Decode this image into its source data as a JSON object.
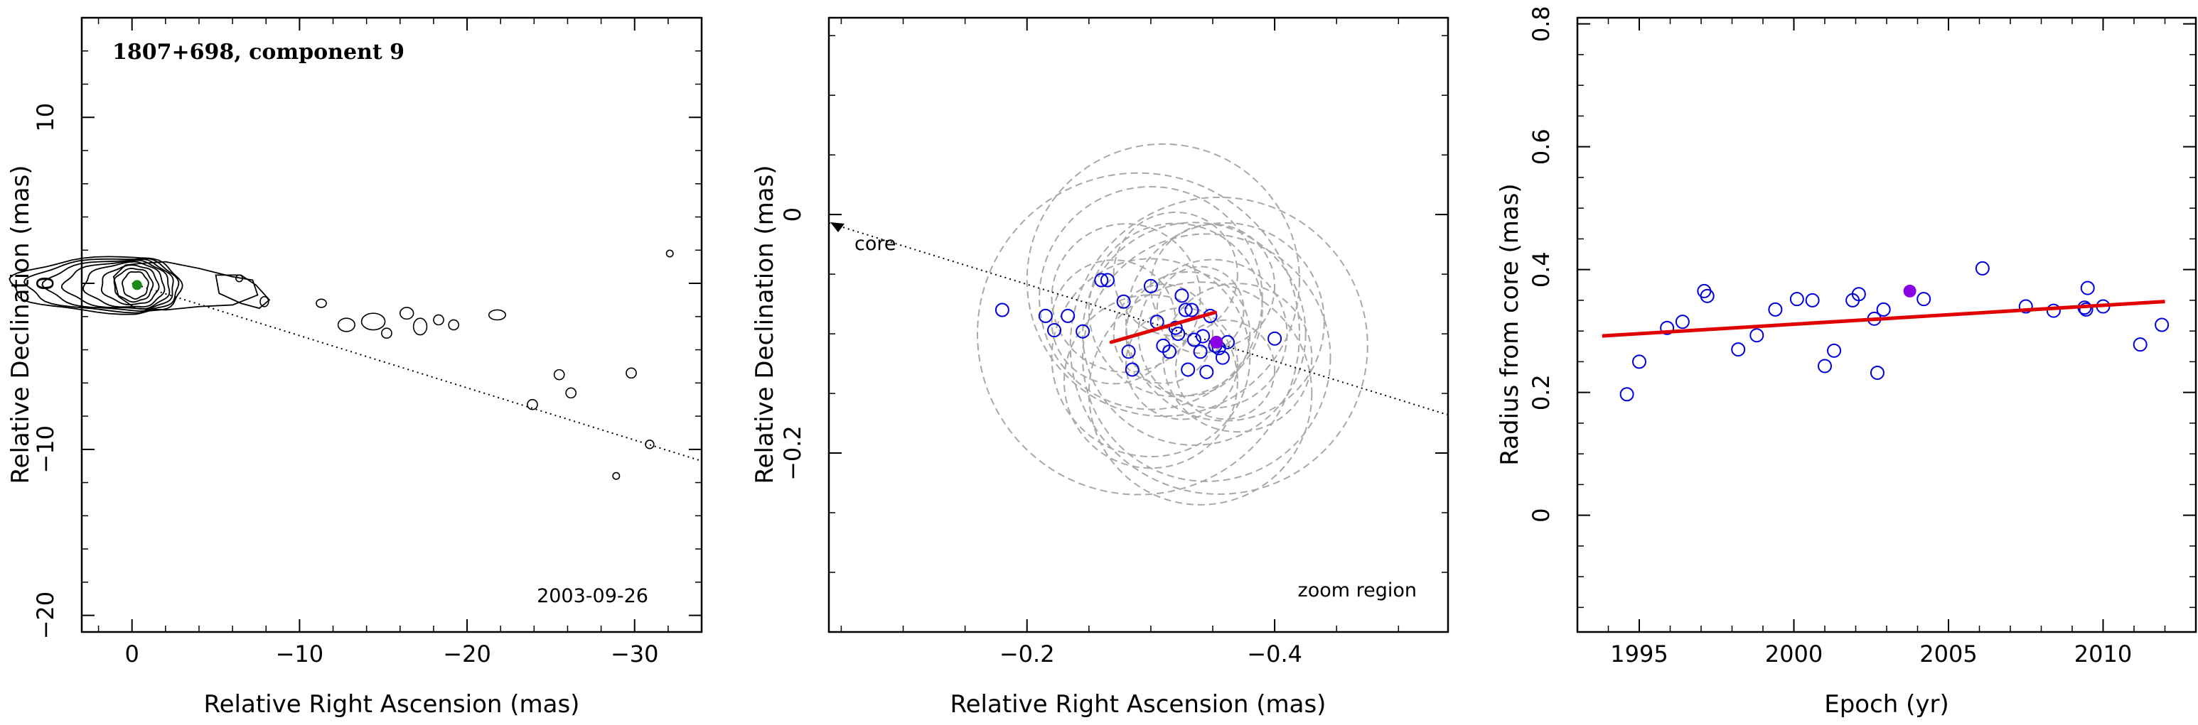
{
  "chart_data": [
    {
      "panel": "map",
      "type": "contour",
      "title": "1807+698, component 9",
      "date_label": "2003-09-26",
      "xlabel": "Relative Right Ascension (mas)",
      "ylabel": "Relative Declination (mas)",
      "xlim": [
        3,
        -34
      ],
      "ylim": [
        -21,
        16
      ],
      "xticks": [
        0,
        -10,
        -20,
        -30
      ],
      "yticks": [
        -20,
        -10,
        0,
        10
      ],
      "xtick_labels": [
        "0",
        "−10",
        "−20",
        "−30"
      ],
      "ytick_labels": [
        "−20",
        "−10",
        "0",
        "10"
      ],
      "component_marker": {
        "x": -0.3,
        "y": -0.1,
        "color": "#1a8a1a"
      },
      "jet_axis_line": {
        "x": [
          0,
          -34
        ],
        "y": [
          0,
          -10.7
        ],
        "style": "dotted"
      },
      "contour_color": "#000000"
    },
    {
      "panel": "zoom",
      "type": "scatter",
      "annotation_core": "core",
      "annotation_region": "zoom region",
      "xlabel": "Relative Right Ascension (mas)",
      "ylabel": "Relative Declination (mas)",
      "xlim": [
        -0.04,
        -0.54
      ],
      "ylim": [
        -0.35,
        0.165
      ],
      "xticks": [
        -0.2,
        -0.4
      ],
      "yticks": [
        -0.2,
        0
      ],
      "xtick_labels": [
        "−0.2",
        "−0.4"
      ],
      "ytick_labels": [
        "−0.2",
        "0"
      ],
      "points": [
        [
          -0.18,
          -0.08
        ],
        [
          -0.215,
          -0.085
        ],
        [
          -0.222,
          -0.097
        ],
        [
          -0.233,
          -0.085
        ],
        [
          -0.245,
          -0.098
        ],
        [
          -0.26,
          -0.055
        ],
        [
          -0.265,
          -0.055
        ],
        [
          -0.278,
          -0.073
        ],
        [
          -0.282,
          -0.115
        ],
        [
          -0.285,
          -0.13
        ],
        [
          -0.3,
          -0.06
        ],
        [
          -0.305,
          -0.09
        ],
        [
          -0.31,
          -0.11
        ],
        [
          -0.315,
          -0.115
        ],
        [
          -0.32,
          -0.095
        ],
        [
          -0.322,
          -0.1
        ],
        [
          -0.325,
          -0.068
        ],
        [
          -0.328,
          -0.08
        ],
        [
          -0.33,
          -0.13
        ],
        [
          -0.333,
          -0.08
        ],
        [
          -0.335,
          -0.105
        ],
        [
          -0.34,
          -0.115
        ],
        [
          -0.342,
          -0.102
        ],
        [
          -0.345,
          -0.132
        ],
        [
          -0.348,
          -0.085
        ],
        [
          -0.352,
          -0.11
        ],
        [
          -0.355,
          -0.112
        ],
        [
          -0.358,
          -0.12
        ],
        [
          -0.362,
          -0.107
        ],
        [
          -0.4,
          -0.104
        ]
      ],
      "highlight_point": [
        -0.353,
        -0.107
      ],
      "highlight_color": "#8a00e6",
      "point_color": "#0000e0",
      "error_circles": [
        [
          -0.31,
          -0.055,
          0.11
        ],
        [
          -0.29,
          -0.1,
          0.13
        ],
        [
          -0.335,
          -0.1,
          0.09
        ],
        [
          -0.345,
          -0.12,
          0.1
        ],
        [
          -0.3,
          -0.12,
          0.08
        ],
        [
          -0.32,
          -0.08,
          0.07
        ],
        [
          -0.35,
          -0.1,
          0.06
        ],
        [
          -0.33,
          -0.1,
          0.05
        ],
        [
          -0.36,
          -0.09,
          0.08
        ],
        [
          -0.28,
          -0.07,
          0.06
        ],
        [
          -0.3,
          -0.14,
          0.07
        ],
        [
          -0.34,
          -0.15,
          0.09
        ],
        [
          -0.37,
          -0.12,
          0.06
        ],
        [
          -0.32,
          -0.05,
          0.05
        ],
        [
          -0.31,
          -0.1,
          0.04
        ],
        [
          -0.35,
          -0.06,
          0.05
        ],
        [
          -0.325,
          -0.125,
          0.045
        ],
        [
          -0.34,
          -0.08,
          0.035
        ],
        [
          -0.27,
          -0.09,
          0.05
        ],
        [
          -0.36,
          -0.13,
          0.04
        ],
        [
          -0.3,
          -0.07,
          0.09
        ],
        [
          -0.355,
          -0.11,
          0.12
        ]
      ],
      "circle_color": "#a8a8a8",
      "fit_segment": {
        "x": [
          -0.268,
          -0.352
        ],
        "y": [
          -0.107,
          -0.082
        ],
        "color": "#e00000"
      },
      "jet_axis_line": {
        "x": [
          -0.04,
          -0.54
        ],
        "y": [
          -0.007,
          -0.168
        ],
        "style": "dotted"
      }
    },
    {
      "panel": "radius",
      "type": "scatter",
      "xlabel": "Epoch (yr)",
      "ylabel": "Radius from core (mas)",
      "xlim": [
        1993,
        2013
      ],
      "ylim": [
        -0.19,
        0.81
      ],
      "xticks": [
        1995,
        2000,
        2005,
        2010
      ],
      "yticks": [
        0,
        0.2,
        0.4,
        0.6,
        0.8
      ],
      "xtick_labels": [
        "1995",
        "2000",
        "2005",
        "2010"
      ],
      "ytick_labels": [
        "0",
        "0.2",
        "0.4",
        "0.6",
        "0.8"
      ],
      "points": [
        [
          1994.6,
          0.197
        ],
        [
          1995.0,
          0.25
        ],
        [
          1995.9,
          0.305
        ],
        [
          1996.4,
          0.315
        ],
        [
          1997.1,
          0.365
        ],
        [
          1997.2,
          0.357
        ],
        [
          1998.2,
          0.27
        ],
        [
          1998.8,
          0.293
        ],
        [
          1999.4,
          0.335
        ],
        [
          2000.1,
          0.352
        ],
        [
          2000.6,
          0.35
        ],
        [
          2001.0,
          0.243
        ],
        [
          2001.3,
          0.268
        ],
        [
          2001.9,
          0.35
        ],
        [
          2002.1,
          0.36
        ],
        [
          2002.6,
          0.32
        ],
        [
          2002.7,
          0.232
        ],
        [
          2002.9,
          0.335
        ],
        [
          2004.2,
          0.352
        ],
        [
          2006.1,
          0.402
        ],
        [
          2007.5,
          0.34
        ],
        [
          2008.4,
          0.333
        ],
        [
          2009.4,
          0.338
        ],
        [
          2009.45,
          0.335
        ],
        [
          2009.5,
          0.37
        ],
        [
          2010.0,
          0.34
        ],
        [
          2011.2,
          0.278
        ],
        [
          2011.9,
          0.31
        ]
      ],
      "highlight_point": [
        2003.75,
        0.365
      ],
      "highlight_color": "#8a00e6",
      "point_color": "#0000e0",
      "fit_line": {
        "x": [
          1993.8,
          2012.0
        ],
        "y": [
          0.292,
          0.348
        ],
        "color": "#e00000"
      }
    }
  ]
}
